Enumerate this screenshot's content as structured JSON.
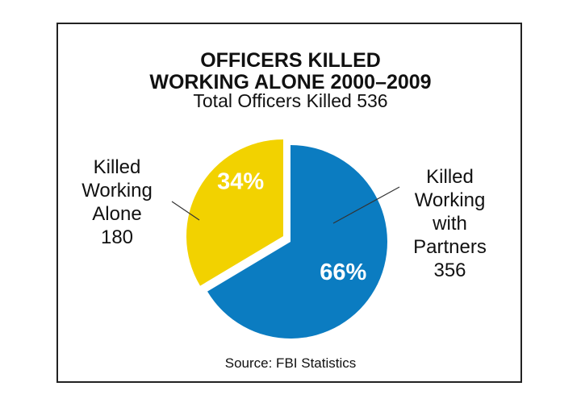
{
  "chart_data": {
    "type": "pie",
    "title": "OFFICERS KILLED WORKING ALONE 2000–2009",
    "title_lines": [
      "OFFICERS KILLED",
      "WORKING ALONE 2000–2009"
    ],
    "subtitle": "Total Officers Killed 536",
    "slices": [
      {
        "label_lines": [
          "Killed",
          "Working",
          "with",
          "Partners",
          "356"
        ],
        "value": 356,
        "percent_label": "66%",
        "percent": 66,
        "color": "#0b7cc1"
      },
      {
        "label_lines": [
          "Killed",
          "Working",
          "Alone",
          "180"
        ],
        "value": 180,
        "percent_label": "34%",
        "percent": 34,
        "color": "#f2d200",
        "exploded": true
      }
    ],
    "source": "Source: FBI Statistics"
  }
}
